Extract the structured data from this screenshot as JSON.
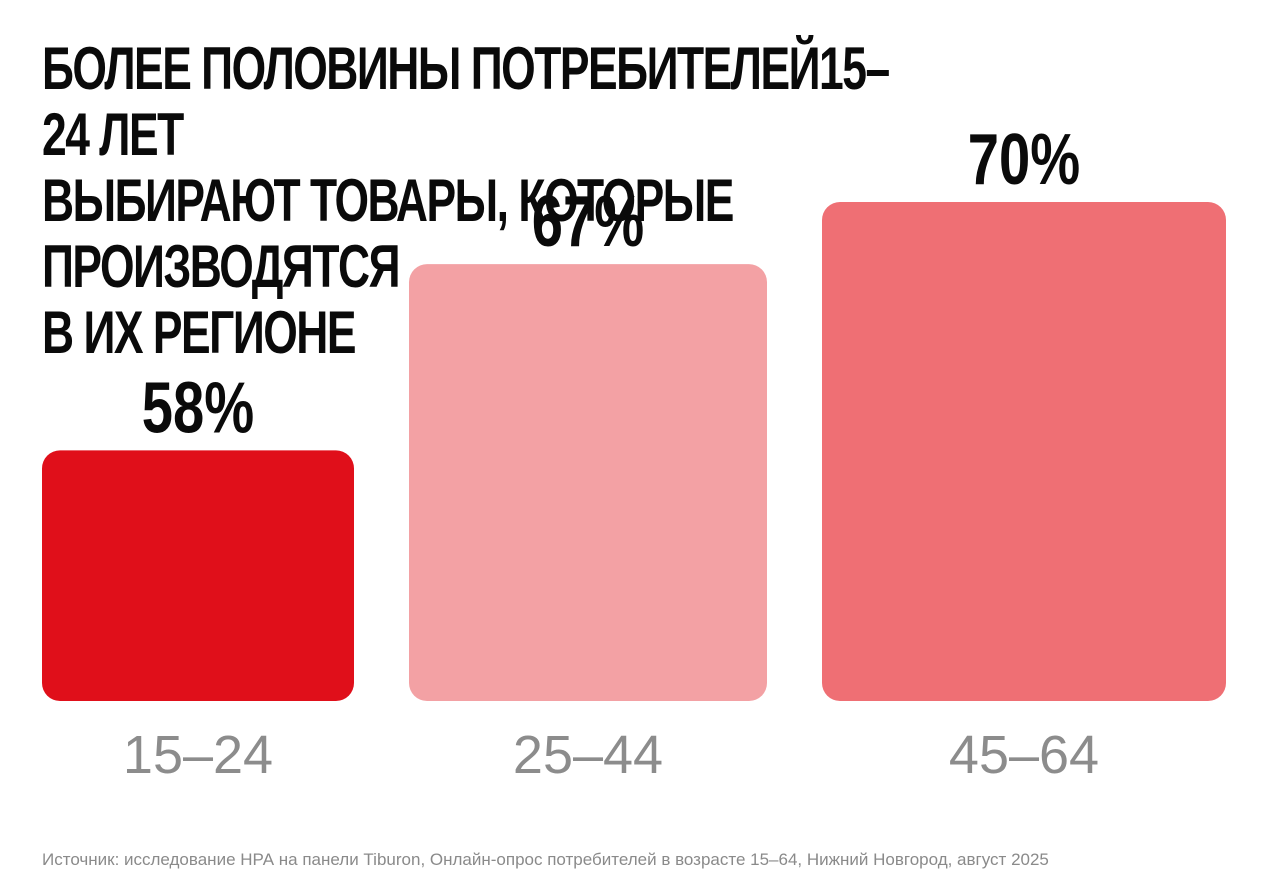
{
  "chart_data": {
    "type": "bar",
    "title": "Более половины потребителей15–24 лет\nвыбирают товары, которые производятся\nв их регионе",
    "categories": [
      "15–24",
      "25–44",
      "45–64"
    ],
    "values": [
      58,
      67,
      70
    ],
    "value_labels": [
      "58%",
      "67%",
      "70%"
    ],
    "unit": "%",
    "colors": [
      "#e00f1a",
      "#f3a1a4",
      "#ef6f74"
    ],
    "label_color": "#0a0a0a",
    "category_color": "#8c8c8c",
    "grid": false,
    "legend": "none"
  },
  "source": "Источник: исследование НРА на панели Tiburon, Онлайн-опрос потребителей в возрасте 15–64, Нижний Новгород, август 2025"
}
